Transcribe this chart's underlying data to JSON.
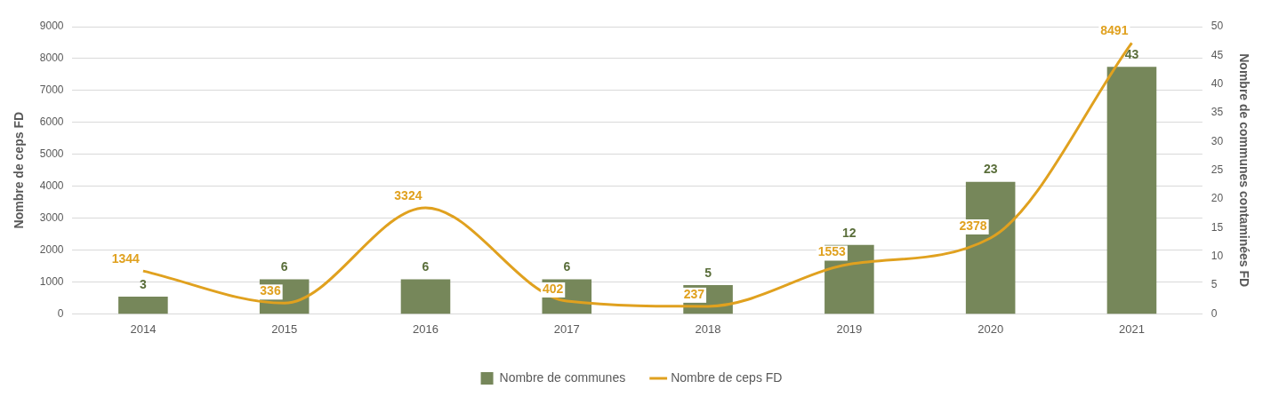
{
  "chart_data": {
    "type": "bar",
    "categories": [
      "2014",
      "2015",
      "2016",
      "2017",
      "2018",
      "2019",
      "2020",
      "2021"
    ],
    "series": [
      {
        "name": "Nombre de communes",
        "axis": "y2",
        "color": "#76875a",
        "values": [
          3,
          6,
          6,
          6,
          5,
          12,
          23,
          43
        ]
      },
      {
        "name": "Nombre de ceps FD",
        "type": "line",
        "axis": "y",
        "color": "#e0a11f",
        "values": [
          1344,
          336,
          3324,
          402,
          237,
          1553,
          2378,
          8491
        ]
      }
    ],
    "ylabel": "Nombre de ceps FD",
    "y2label": "Nombre de communes contaminées FD",
    "ylim": [
      0,
      9000
    ],
    "yticks": [
      0,
      1000,
      2000,
      3000,
      4000,
      5000,
      6000,
      7000,
      8000,
      9000
    ],
    "y2lim": [
      0,
      50
    ],
    "y2ticks": [
      0,
      5,
      10,
      15,
      20,
      25,
      30,
      35,
      40,
      45,
      50
    ],
    "grid": "y",
    "legend": "bottom",
    "data_labels": true,
    "marker": "none",
    "line_style": "solid"
  }
}
